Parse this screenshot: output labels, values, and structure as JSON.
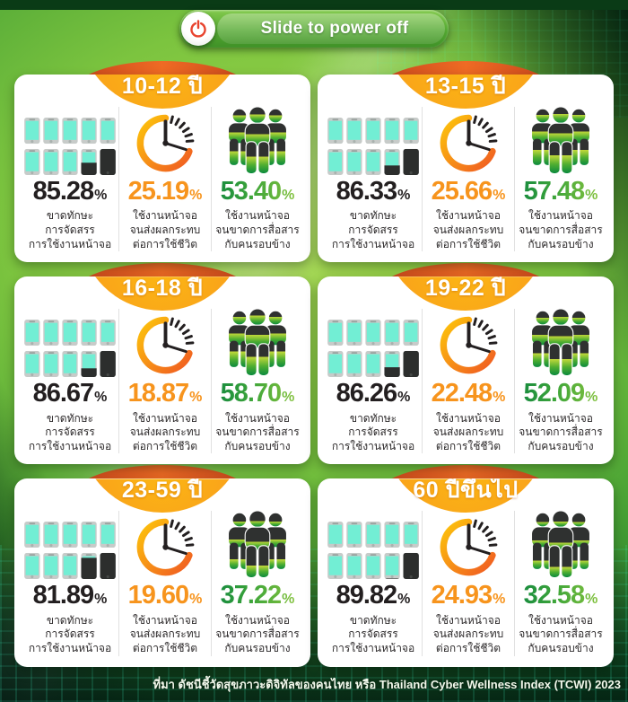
{
  "power_bar": {
    "label": "Slide to power off"
  },
  "unit": "%",
  "columns": [
    {
      "id": "screens",
      "icon": "smartphone-grid-icon",
      "label": "ขาดทักษะ\nการจัดสรร\nการใช้งานหน้าจอ",
      "value_color": "#231f20"
    },
    {
      "id": "impact",
      "icon": "clock-icon",
      "label": "ใช้งานหน้าจอ\nจนส่งผลกระทบ\nต่อการใช้ชีวิต",
      "value_color": "#f7941d"
    },
    {
      "id": "social",
      "icon": "people-icon",
      "label": "ใช้งานหน้าจอ\nจนขาดการสื่อสาร\nกับคนรอบข้าง",
      "value_color": "#2e9e41"
    }
  ],
  "cards": [
    {
      "age_label": "10-12 ปี",
      "values": [
        "85.28",
        "25.19",
        "53.40"
      ]
    },
    {
      "age_label": "13-15 ปี",
      "values": [
        "86.33",
        "25.66",
        "57.48"
      ]
    },
    {
      "age_label": "16-18 ปี",
      "values": [
        "86.67",
        "18.87",
        "58.70"
      ]
    },
    {
      "age_label": "19-22 ปี",
      "values": [
        "86.26",
        "22.48",
        "52.09"
      ]
    },
    {
      "age_label": "23-59 ปี",
      "values": [
        "81.89",
        "19.60",
        "37.22"
      ]
    },
    {
      "age_label": "60 ปีขึ้นไป",
      "values": [
        "89.82",
        "24.93",
        "32.58"
      ]
    }
  ],
  "footer": {
    "source": "ที่มา ดัชนีชี้วัดสุขภาวะดิจิทัลของคนไทย หรือ Thailand Cyber Wellness Index (TCWI) 2023"
  },
  "colors": {
    "header_orange": "#f6921e",
    "header_dark_orange": "#e0561d",
    "black_value": "#231f20",
    "orange_value": "#f7941d",
    "green_value_dark": "#14893f",
    "green_value_light": "#8dc63f",
    "phone_screen_cyan": "#72eed4",
    "phone_dark": "#2c2e2d",
    "people_gray": "#2f3130",
    "people_green_top": "#c2d93a",
    "people_green_bottom": "#0b8a3e",
    "background_green": "#7cc43f",
    "power_icon_red": "#e8432e",
    "card_white": "#ffffff"
  },
  "chart_data": {
    "type": "table",
    "title": "Thailand Cyber Wellness Index (TCWI) 2023",
    "unit": "%",
    "categories": [
      "10-12 ปี",
      "13-15 ปี",
      "16-18 ปี",
      "19-22 ปี",
      "23-59 ปี",
      "60 ปีขึ้นไป"
    ],
    "series": [
      {
        "name": "ขาดทักษะการจัดสรรการใช้งานหน้าจอ",
        "values": [
          85.28,
          86.33,
          86.67,
          86.26,
          81.89,
          89.82
        ]
      },
      {
        "name": "ใช้งานหน้าจอจนส่งผลกระทบต่อการใช้ชีวิต",
        "values": [
          25.19,
          25.66,
          18.87,
          22.48,
          19.6,
          24.93
        ]
      },
      {
        "name": "ใช้งานหน้าจอจนขาดการสื่อสารกับคนรอบข้าง",
        "values": [
          53.4,
          57.48,
          58.7,
          52.09,
          37.22,
          32.58
        ]
      }
    ]
  }
}
